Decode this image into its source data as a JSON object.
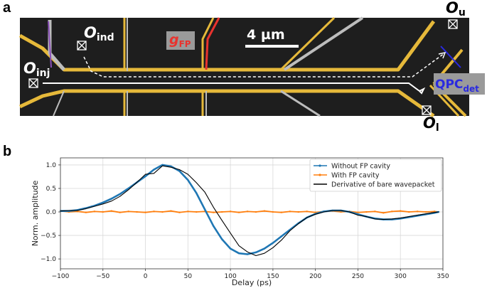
{
  "panel_a": {
    "label": "a",
    "scale_bar": "4 µm",
    "labels": {
      "o_inj": {
        "main": "O",
        "sub": "inj"
      },
      "o_ind": {
        "main": "O",
        "sub": "ind"
      },
      "g_fp": {
        "main": "g",
        "sub": "FP"
      },
      "o_u": {
        "main": "O",
        "sub": "u"
      },
      "o_l": {
        "main": "O",
        "sub": "l"
      },
      "qpc_det": {
        "main": "QPC",
        "sub": "det"
      }
    },
    "colors": {
      "background": "#1e1e1e",
      "gate": "#e6b93a",
      "gate_grey": "#bdbdbd",
      "g_fp": "#e8332e",
      "qpc": "#2a2ae0",
      "purple": "#8a4fb8"
    }
  },
  "chart_data": {
    "label": "b",
    "type": "line",
    "xlabel": "Delay (ps)",
    "ylabel": "Norm. amplitude",
    "xlim": [
      -100,
      350
    ],
    "ylim": [
      -1.21,
      1.15
    ],
    "xticks": [
      -100,
      -50,
      0,
      50,
      100,
      150,
      200,
      250,
      300,
      350
    ],
    "yticks": [
      -1.0,
      -0.5,
      0.0,
      0.5,
      1.0
    ],
    "xtick_labels": [
      "−100",
      "−50",
      "0",
      "50",
      "100",
      "150",
      "200",
      "250",
      "300",
      "350"
    ],
    "ytick_labels": [
      "−1.0",
      "−0.5",
      "0.0",
      "0.5",
      "1.0"
    ],
    "grid": true,
    "legend_position": "top-right",
    "x": [
      -100,
      -90,
      -80,
      -70,
      -60,
      -50,
      -40,
      -30,
      -20,
      -10,
      0,
      10,
      20,
      30,
      40,
      50,
      60,
      70,
      80,
      90,
      100,
      110,
      120,
      130,
      140,
      150,
      160,
      170,
      180,
      190,
      200,
      210,
      220,
      230,
      240,
      250,
      260,
      270,
      280,
      290,
      300,
      310,
      320,
      330,
      340,
      345
    ],
    "series": [
      {
        "name": "Without FP cavity",
        "color": "#1f77b4",
        "marker": true,
        "values": [
          0.02,
          0.02,
          0.04,
          0.08,
          0.13,
          0.2,
          0.28,
          0.38,
          0.5,
          0.63,
          0.76,
          0.9,
          1.0,
          0.97,
          0.87,
          0.68,
          0.4,
          0.05,
          -0.3,
          -0.58,
          -0.78,
          -0.88,
          -0.9,
          -0.86,
          -0.78,
          -0.66,
          -0.52,
          -0.38,
          -0.24,
          -0.12,
          -0.04,
          0.01,
          0.03,
          0.03,
          0.0,
          -0.05,
          -0.1,
          -0.14,
          -0.16,
          -0.16,
          -0.14,
          -0.11,
          -0.08,
          -0.05,
          -0.02,
          0.0
        ]
      },
      {
        "name": "With FP cavity",
        "color": "#ff7f0e",
        "marker": true,
        "values": [
          0.02,
          0.0,
          0.01,
          -0.01,
          0.01,
          0.0,
          0.02,
          -0.01,
          0.01,
          0.0,
          -0.01,
          0.01,
          0.0,
          0.02,
          -0.01,
          0.01,
          0.0,
          0.01,
          -0.01,
          0.0,
          0.01,
          -0.01,
          0.01,
          0.0,
          0.02,
          0.0,
          -0.01,
          0.01,
          0.0,
          0.01,
          -0.01,
          0.01,
          0.02,
          0.0,
          0.01,
          -0.01,
          0.0,
          0.01,
          -0.02,
          0.01,
          0.02,
          0.0,
          0.01,
          0.0,
          0.01,
          0.0
        ]
      },
      {
        "name": "Derivative of bare wavepacket",
        "color": "#000000",
        "marker": false,
        "values": [
          0.02,
          0.03,
          0.03,
          0.07,
          0.12,
          0.17,
          0.23,
          0.33,
          0.47,
          0.63,
          0.8,
          0.82,
          0.98,
          0.95,
          0.9,
          0.8,
          0.62,
          0.42,
          0.1,
          -0.18,
          -0.45,
          -0.72,
          -0.85,
          -0.93,
          -0.88,
          -0.76,
          -0.6,
          -0.4,
          -0.25,
          -0.12,
          -0.05,
          0.0,
          0.03,
          0.03,
          0.0,
          -0.07,
          -0.1,
          -0.15,
          -0.16,
          -0.15,
          -0.13,
          -0.1,
          -0.07,
          -0.04,
          -0.01,
          0.0
        ]
      }
    ]
  }
}
